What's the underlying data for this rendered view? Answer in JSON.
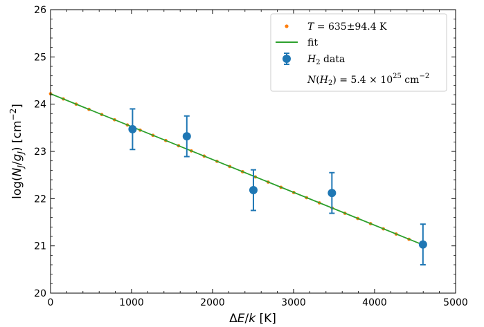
{
  "chart_data": {
    "type": "scatter",
    "xlabel_parts": [
      "Δ",
      "E",
      "/",
      "k",
      " [K]"
    ],
    "ylabel_parts": [
      "log(",
      "N",
      "J",
      "/",
      "g",
      "J",
      ") [cm",
      "−2",
      "]"
    ],
    "xlim": [
      0,
      5000
    ],
    "ylim": [
      20,
      26
    ],
    "xticks": [
      0,
      1000,
      2000,
      3000,
      4000,
      5000
    ],
    "yticks": [
      20,
      21,
      22,
      23,
      24,
      25,
      26
    ],
    "xtick_labels": [
      "0",
      "1000",
      "2000",
      "3000",
      "4000",
      "5000"
    ],
    "ytick_labels": [
      "20",
      "21",
      "22",
      "23",
      "24",
      "25",
      "26"
    ],
    "grid": false,
    "legend_position": "top-right",
    "series": [
      {
        "name": "T = 635±94.4 K",
        "legend_parts": [
          "T",
          " = 635±94.4 K"
        ],
        "type": "scatter",
        "color": "#ff7f0e",
        "x": [
          0,
          158,
          316,
          474,
          632,
          790,
          948,
          1106,
          1264,
          1422,
          1580,
          1738,
          1896,
          2054,
          2212,
          2370,
          2528,
          2686,
          2844,
          3002,
          3160,
          3318,
          3476,
          3634,
          3792,
          3950,
          4108,
          4266,
          4424,
          4582
        ],
        "y": [
          24.22,
          24.11,
          24.0,
          23.89,
          23.78,
          23.67,
          23.56,
          23.45,
          23.34,
          23.23,
          23.12,
          23.01,
          22.9,
          22.79,
          22.68,
          22.57,
          22.46,
          22.35,
          22.24,
          22.13,
          22.02,
          21.91,
          21.8,
          21.69,
          21.58,
          21.47,
          21.36,
          21.25,
          21.14,
          21.03
        ]
      },
      {
        "name": "fit",
        "type": "line",
        "color": "#2ca02c",
        "x": [
          0,
          4600
        ],
        "y": [
          24.22,
          21.02
        ]
      },
      {
        "name": "H2 data",
        "legend_parts": [
          "H",
          "2",
          " data"
        ],
        "type": "errorbar",
        "color": "#1f77b4",
        "x": [
          1012,
          1682,
          2504,
          3473,
          4597
        ],
        "y": [
          23.47,
          23.32,
          22.18,
          22.12,
          21.03
        ],
        "yerr": [
          0.43,
          0.43,
          0.43,
          0.43,
          0.43
        ]
      }
    ],
    "legend_note_parts": [
      "N",
      "(",
      "H",
      "2",
      ") = 5.4 × 10",
      "25",
      " cm",
      "−2"
    ]
  }
}
